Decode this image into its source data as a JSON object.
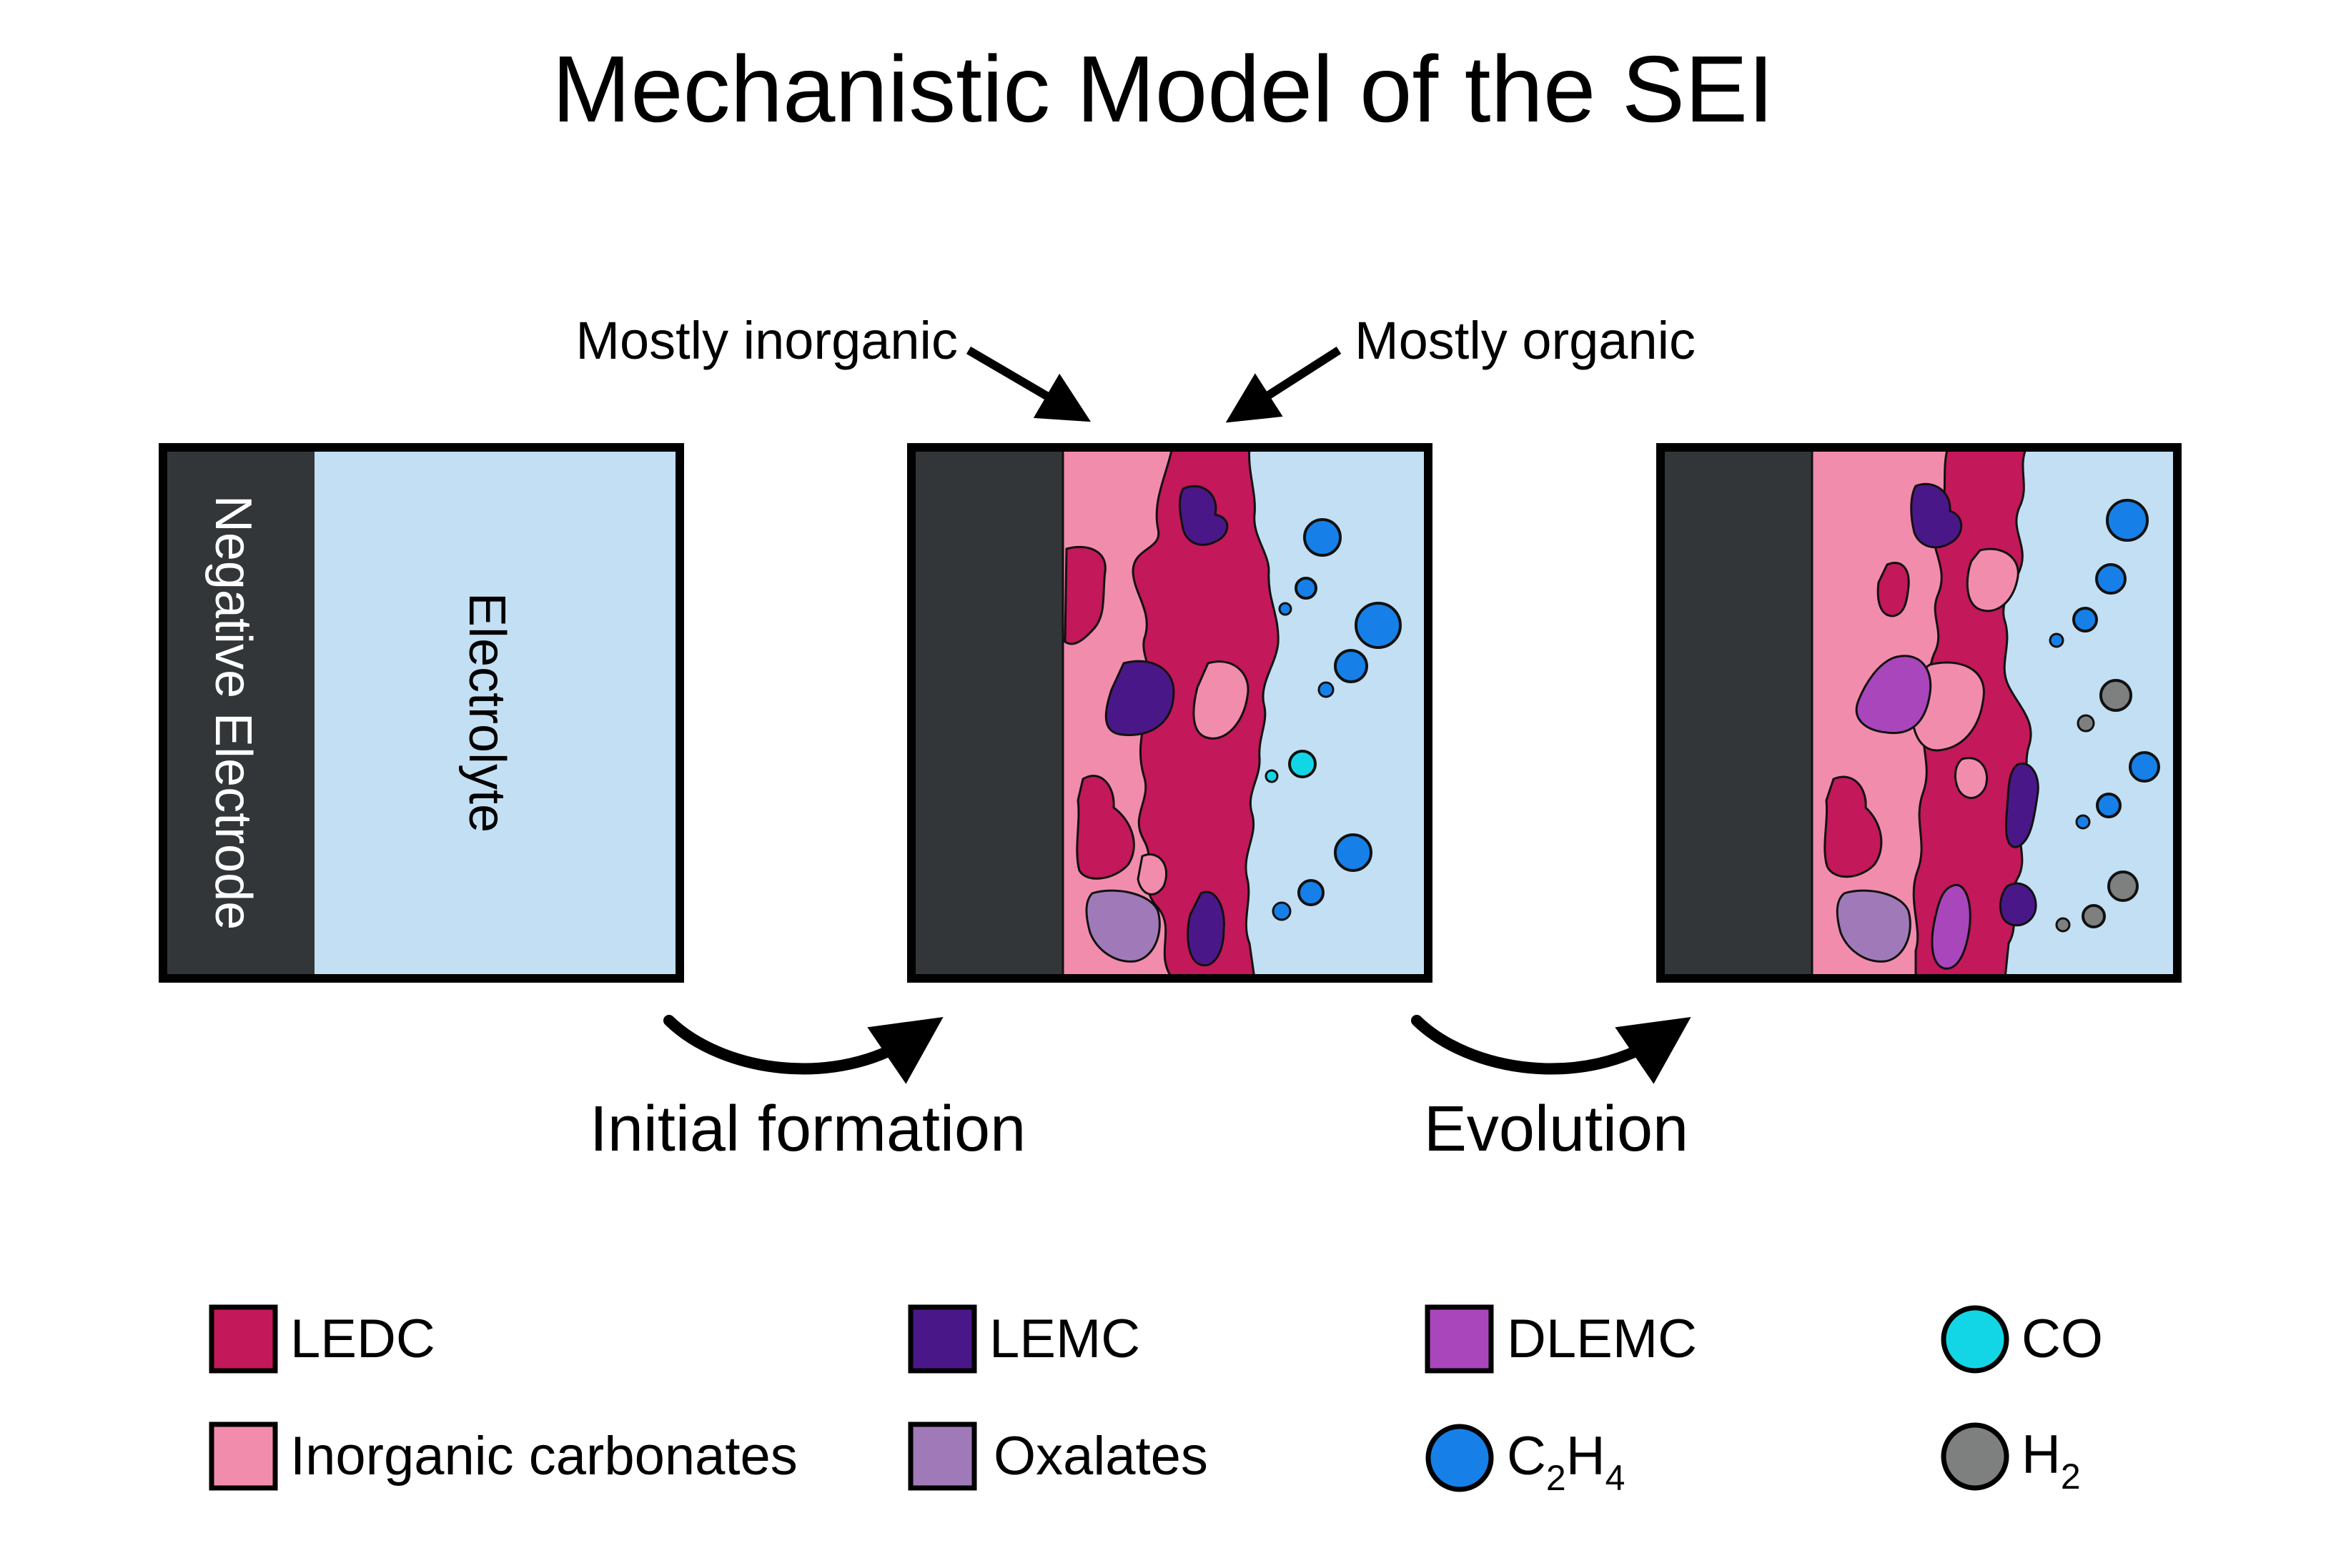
{
  "title": "Mechanistic Model of the SEI",
  "callouts": {
    "inorganic": "Mostly inorganic",
    "organic": "Mostly organic"
  },
  "panels": {
    "electrode_label": "Negative Electrode",
    "electrolyte_label": "Electrolyte"
  },
  "steps": {
    "initial": "Initial formation",
    "evolution": "Evolution"
  },
  "legend": {
    "ledc": "LEDC",
    "inorganic_carbonates": "Inorganic carbonates",
    "lemc": "LEMC",
    "oxalates": "Oxalates",
    "dlemc": "DLEMC",
    "c2h4_c": "C",
    "c2h4_sub2": "2",
    "c2h4_h": "H",
    "c2h4_sub4": "4",
    "co": "CO",
    "h2_h": "H",
    "h2_sub2": "2"
  },
  "colors": {
    "electrode": "#323638",
    "electrolyte": "#c3dff3",
    "ledc": "#c3185a",
    "inorganic_carbonates": "#f28cad",
    "lemc": "#4a1789",
    "oxalates": "#a07ab8",
    "dlemc": "#a946bc",
    "c2h4": "#1680e8",
    "co": "#12d6e6",
    "h2": "#7e807f"
  }
}
